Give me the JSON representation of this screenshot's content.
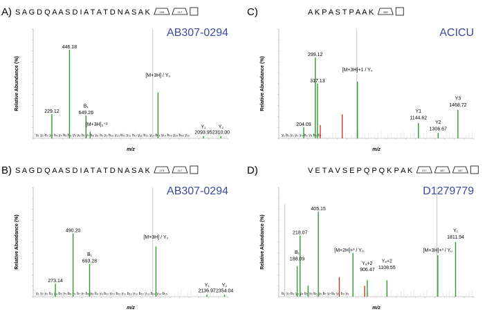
{
  "colors": {
    "green": "#2e9a2e",
    "red": "#c0392b",
    "grey": "#bdbdbd",
    "organism": "#3b4b9b"
  },
  "chart_data": [
    {
      "type": "bar",
      "panel": "A)",
      "sequence": "S A G D Q A A S D I A T A T D N A S A K",
      "glycan_tags": [
        "226",
        "217"
      ],
      "organism": "AB307-0294",
      "ylabel": "Relative Abundance (%)",
      "xlabel": "m/z",
      "xlim": [
        0,
        2400
      ],
      "ylim": [
        0,
        100
      ],
      "peaks": [
        {
          "x": 229.12,
          "y": 22,
          "color": "green"
        },
        {
          "x": 446.18,
          "y": 81,
          "color": "green"
        },
        {
          "x": 649.26,
          "y": 21,
          "color": "green"
        },
        {
          "x": 700,
          "y": 6,
          "color": "green"
        },
        {
          "x": 1470,
          "y": 100,
          "color": "grey"
        },
        {
          "x": 1535,
          "y": 42,
          "color": "green"
        },
        {
          "x": 2093.95,
          "y": 2,
          "color": "green"
        },
        {
          "x": 2310.0,
          "y": 2,
          "color": "green"
        }
      ],
      "annotations": [
        {
          "text": "229.12",
          "x": 229.12,
          "y": 22
        },
        {
          "text": "446.18",
          "x": 446.18,
          "y": 81
        },
        {
          "text": "B₁",
          "x": 649.26,
          "y": 27
        },
        {
          "text": "649.26",
          "x": 649.26,
          "y": 21
        },
        {
          "text": "[M+3H]₃⁺²",
          "x": 780,
          "y": 10
        },
        {
          "text": "[M+3H] / Y₀",
          "x": 1535,
          "y": 55
        },
        {
          "text": "Y₁",
          "x": 2093.95,
          "y": 8
        },
        {
          "text": "2093.95",
          "x": 2093.95,
          "y": 3
        },
        {
          "text": "Y₂",
          "x": 2310.0,
          "y": 8
        },
        {
          "text": "2310.00",
          "x": 2310.0,
          "y": 3
        }
      ],
      "fragment_label": "y₁ y₂ b₃ y₃ b₄ y₄ b₅ b₆ y₅ y₆ b₇ y₇ b₈ y₈ b₉ y₉ b₁₀ y₁₀ b₁₁ y₁₁ b₁₂ y₁₂ b₁₃ y₁₃ b₁₄ y₁₄ b₁₅ y₁₅ b₁₆ y₁₆"
    },
    {
      "type": "bar",
      "panel": "C)",
      "sequence": "A K P A S T P A A K",
      "glycan_tags": [
        "335"
      ],
      "organism": "ACICU",
      "ylabel": "Relative Abundance (%)",
      "xlabel": "m/z",
      "xlim": [
        0,
        1600
      ],
      "ylim": [
        0,
        100
      ],
      "peaks": [
        {
          "x": 204.09,
          "y": 10,
          "color": "green"
        },
        {
          "x": 299.12,
          "y": 74,
          "color": "green"
        },
        {
          "x": 317.13,
          "y": 50,
          "color": "green"
        },
        {
          "x": 340,
          "y": 12,
          "color": "red"
        },
        {
          "x": 520,
          "y": 22,
          "color": "red"
        },
        {
          "x": 640,
          "y": 100,
          "color": "grey"
        },
        {
          "x": 645,
          "y": 52,
          "color": "green"
        },
        {
          "x": 1144.62,
          "y": 14,
          "color": "green"
        },
        {
          "x": 1306.67,
          "y": 5,
          "color": "green"
        },
        {
          "x": 1468.72,
          "y": 26,
          "color": "green"
        }
      ],
      "annotations": [
        {
          "text": "204.09",
          "x": 204.09,
          "y": 10
        },
        {
          "text": "299.12",
          "x": 299.12,
          "y": 74
        },
        {
          "text": "317.13",
          "x": 317.13,
          "y": 50
        },
        {
          "text": "[M+3H]+1 / Y₀",
          "x": 645,
          "y": 60
        },
        {
          "text": "Y1",
          "x": 1144.62,
          "y": 22
        },
        {
          "text": "1144.62",
          "x": 1144.62,
          "y": 16
        },
        {
          "text": "Y2",
          "x": 1306.67,
          "y": 12
        },
        {
          "text": "1306.67",
          "x": 1306.67,
          "y": 6
        },
        {
          "text": "Y3",
          "x": 1468.72,
          "y": 34
        },
        {
          "text": "1468.72",
          "x": 1468.72,
          "y": 28
        }
      ],
      "fragment_label": "y₁ b₂ y₂ y₃ y₄ b₃ y₅ b₆ b₇"
    },
    {
      "type": "bar",
      "panel": "B)",
      "sequence": "S A G D Q A A S D I A T A T D N A S A K",
      "glycan_tags": [
        "273",
        "217"
      ],
      "organism": "AB307-0294",
      "ylabel": "Relative Abundance (%)",
      "xlabel": "m/z",
      "xlim": [
        0,
        2400
      ],
      "ylim": [
        0,
        100
      ],
      "peaks": [
        {
          "x": 273.14,
          "y": 12,
          "color": "green"
        },
        {
          "x": 490.2,
          "y": 58,
          "color": "green"
        },
        {
          "x": 693.28,
          "y": 30,
          "color": "green"
        },
        {
          "x": 1470,
          "y": 100,
          "color": "grey"
        },
        {
          "x": 1510,
          "y": 46,
          "color": "green"
        },
        {
          "x": 2136.97,
          "y": 2,
          "color": "green"
        },
        {
          "x": 2354.04,
          "y": 2,
          "color": "green"
        }
      ],
      "annotations": [
        {
          "text": "273.14",
          "x": 273.14,
          "y": 12
        },
        {
          "text": "490.20",
          "x": 490.2,
          "y": 58
        },
        {
          "text": "B₁",
          "x": 693.28,
          "y": 36
        },
        {
          "text": "693.28",
          "x": 693.28,
          "y": 30
        },
        {
          "text": "[M+3H] / Y₀",
          "x": 1510,
          "y": 52
        },
        {
          "text": "Y₁",
          "x": 2136.97,
          "y": 8
        },
        {
          "text": "2136.97",
          "x": 2136.97,
          "y": 3
        },
        {
          "text": "Y₂",
          "x": 2354.04,
          "y": 8
        },
        {
          "text": "2354.04",
          "x": 2354.04,
          "y": 3
        }
      ],
      "fragment_label": "y₁ y₂ y₃ b₃ y₄ b₅ y₅ b₆ y₆ b₇ y₇ b₈ y₈ b₉ y₉ b₁₀ y₁₀ b₁₁ y₁₁ b₁₂ y₁₂ b₁₃ y₁₃ b₁₄ y₁₄ b₁₅"
    },
    {
      "type": "bar",
      "panel": "D)",
      "sequence": "V E T A V S E P Q P Q K P A K",
      "glycan_tags": [
        "217",
        "187",
        "187"
      ],
      "organism": "D1279779",
      "ylabel": "Relative Abundance (%)",
      "xlabel": "m/z",
      "xlim": [
        0,
        2000
      ],
      "ylim": [
        0,
        100
      ],
      "peaks": [
        {
          "x": 60,
          "y": 85,
          "color": "grey"
        },
        {
          "x": 188.09,
          "y": 28,
          "color": "green"
        },
        {
          "x": 218.07,
          "y": 56,
          "color": "green"
        },
        {
          "x": 405.15,
          "y": 78,
          "color": "green"
        },
        {
          "x": 300,
          "y": 10,
          "color": "green"
        },
        {
          "x": 620,
          "y": 18,
          "color": "red"
        },
        {
          "x": 760,
          "y": 40,
          "color": "green"
        },
        {
          "x": 906.47,
          "y": 15,
          "color": "green"
        },
        {
          "x": 880,
          "y": 10,
          "color": "red"
        },
        {
          "x": 1108.55,
          "y": 15,
          "color": "green"
        },
        {
          "x": 1620,
          "y": 100,
          "color": "grey"
        },
        {
          "x": 1630,
          "y": 38,
          "color": "green"
        },
        {
          "x": 1811.94,
          "y": 50,
          "color": "green"
        }
      ],
      "annotations": [
        {
          "text": "218.07",
          "x": 218.07,
          "y": 56
        },
        {
          "text": "B₁",
          "x": 188.09,
          "y": 38
        },
        {
          "text": "188.09",
          "x": 188.09,
          "y": 32
        },
        {
          "text": "405.15",
          "x": 405.15,
          "y": 78
        },
        {
          "text": "[M+2H]+³ / Y₀",
          "x": 720,
          "y": 40
        },
        {
          "text": "Yₐ+2",
          "x": 906.47,
          "y": 28
        },
        {
          "text": "906.47",
          "x": 906.47,
          "y": 22
        },
        {
          "text": "Yₑ+2",
          "x": 1108.55,
          "y": 30
        },
        {
          "text": "1108.55",
          "x": 1108.55,
          "y": 24
        },
        {
          "text": "[M+3H]+³ / Y₀",
          "x": 1630,
          "y": 40
        },
        {
          "text": "Y₁",
          "x": 1811.94,
          "y": 58
        },
        {
          "text": "1811.94",
          "x": 1811.94,
          "y": 52
        }
      ],
      "fragment_label": "b₂ y₂ b₃ y₃ y₄ b₅ y₅ b₆ y₆ b₇ y₇ b₈ y₈ b₉ y₉"
    }
  ]
}
